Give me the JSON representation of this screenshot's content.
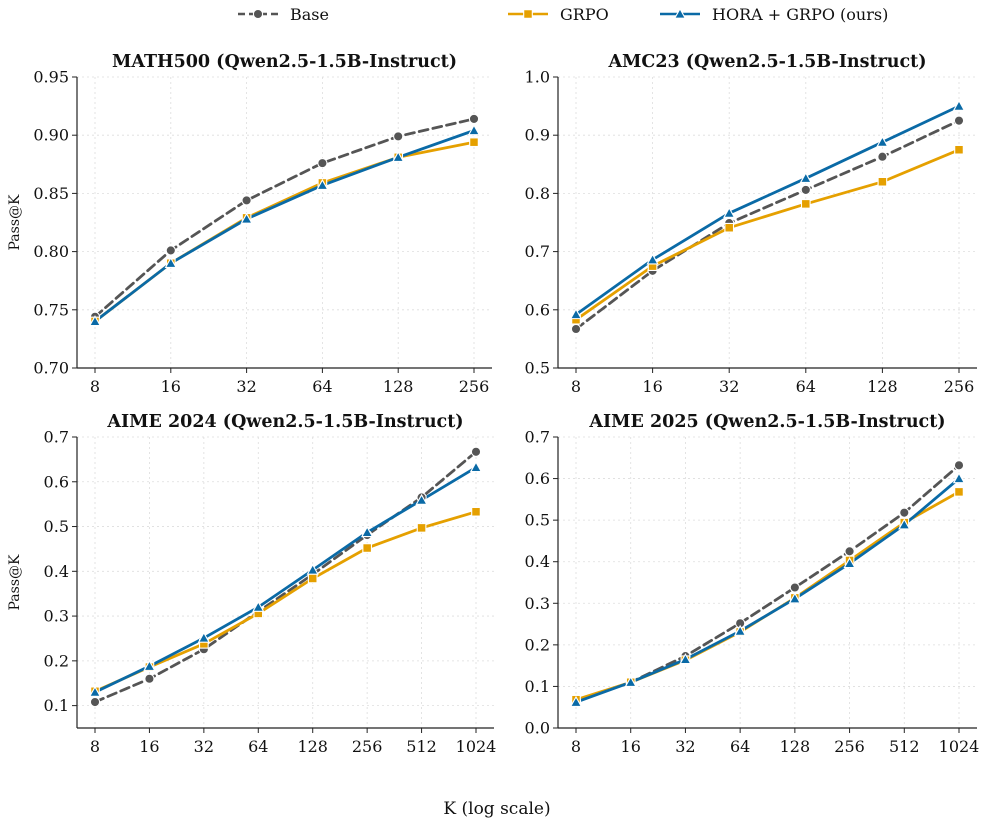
{
  "legend": {
    "placement": "top-center",
    "entries": [
      {
        "label": "Base",
        "color": "#555555",
        "marker": "circle",
        "dash": true
      },
      {
        "label": "GRPO",
        "color": "#e5a000",
        "marker": "square",
        "dash": false
      },
      {
        "label": "HORA + GRPO (ours)",
        "color": "#0a6aa6",
        "marker": "triangle",
        "dash": false
      }
    ]
  },
  "ylabel": "Pass@K",
  "xlabel": "K (log scale)",
  "colors": {
    "base": "#555555",
    "grpo": "#e5a000",
    "hora": "#0a6aa6",
    "grid": "#dddddd"
  },
  "chart_data": [
    {
      "type": "line",
      "title": "MATH500 (Qwen2.5-1.5B-Instruct)",
      "x": [
        8,
        16,
        32,
        64,
        128,
        256
      ],
      "xscale": "log2",
      "ylim": [
        0.7,
        0.95
      ],
      "yticks": [
        "0.70",
        "0.75",
        "0.80",
        "0.85",
        "0.90",
        "0.95"
      ],
      "grid": true,
      "series": [
        {
          "name": "Base",
          "values": [
            0.744,
            0.801,
            0.844,
            0.876,
            0.899,
            0.914
          ]
        },
        {
          "name": "GRPO",
          "values": [
            0.74,
            0.79,
            0.829,
            0.859,
            0.881,
            0.894
          ]
        },
        {
          "name": "HORA + GRPO (ours)",
          "values": [
            0.74,
            0.79,
            0.828,
            0.857,
            0.881,
            0.904
          ]
        }
      ]
    },
    {
      "type": "line",
      "title": "AMC23 (Qwen2.5-1.5B-Instruct)",
      "x": [
        8,
        16,
        32,
        64,
        128,
        256
      ],
      "xscale": "log2",
      "ylim": [
        0.5,
        1.0
      ],
      "yticks": [
        "0.5",
        "0.6",
        "0.7",
        "0.8",
        "0.9",
        "1.0"
      ],
      "grid": true,
      "series": [
        {
          "name": "Base",
          "values": [
            0.567,
            0.667,
            0.749,
            0.806,
            0.863,
            0.925
          ]
        },
        {
          "name": "GRPO",
          "values": [
            0.583,
            0.675,
            0.741,
            0.782,
            0.82,
            0.875
          ]
        },
        {
          "name": "HORA + GRPO (ours)",
          "values": [
            0.592,
            0.686,
            0.766,
            0.826,
            0.888,
            0.95
          ]
        }
      ]
    },
    {
      "type": "line",
      "title": "AIME 2024 (Qwen2.5-1.5B-Instruct)",
      "x": [
        8,
        16,
        32,
        64,
        128,
        256,
        512,
        1024
      ],
      "xscale": "log2",
      "ylim": [
        0.05,
        0.7
      ],
      "yticks": [
        "0.1",
        "0.2",
        "0.3",
        "0.4",
        "0.5",
        "0.6",
        "0.7"
      ],
      "grid": true,
      "series": [
        {
          "name": "Base",
          "values": [
            0.108,
            0.16,
            0.226,
            0.31,
            0.393,
            0.481,
            0.565,
            0.667
          ]
        },
        {
          "name": "GRPO",
          "values": [
            0.132,
            0.186,
            0.238,
            0.306,
            0.384,
            0.452,
            0.497,
            0.533
          ]
        },
        {
          "name": "HORA + GRPO (ours)",
          "values": [
            0.13,
            0.188,
            0.251,
            0.32,
            0.403,
            0.487,
            0.559,
            0.632
          ]
        }
      ]
    },
    {
      "type": "line",
      "title": "AIME 2025 (Qwen2.5-1.5B-Instruct)",
      "x": [
        8,
        16,
        32,
        64,
        128,
        256,
        512,
        1024
      ],
      "xscale": "log2",
      "ylim": [
        0.0,
        0.7
      ],
      "yticks": [
        "0.0",
        "0.1",
        "0.2",
        "0.3",
        "0.4",
        "0.5",
        "0.6",
        "0.7"
      ],
      "grid": true,
      "series": [
        {
          "name": "Base",
          "values": [
            0.065,
            0.11,
            0.173,
            0.252,
            0.338,
            0.425,
            0.518,
            0.632
          ]
        },
        {
          "name": "GRPO",
          "values": [
            0.068,
            0.11,
            0.163,
            0.231,
            0.313,
            0.403,
            0.494,
            0.568
          ]
        },
        {
          "name": "HORA + GRPO (ours)",
          "values": [
            0.062,
            0.11,
            0.165,
            0.233,
            0.311,
            0.396,
            0.489,
            0.6
          ]
        }
      ]
    }
  ]
}
